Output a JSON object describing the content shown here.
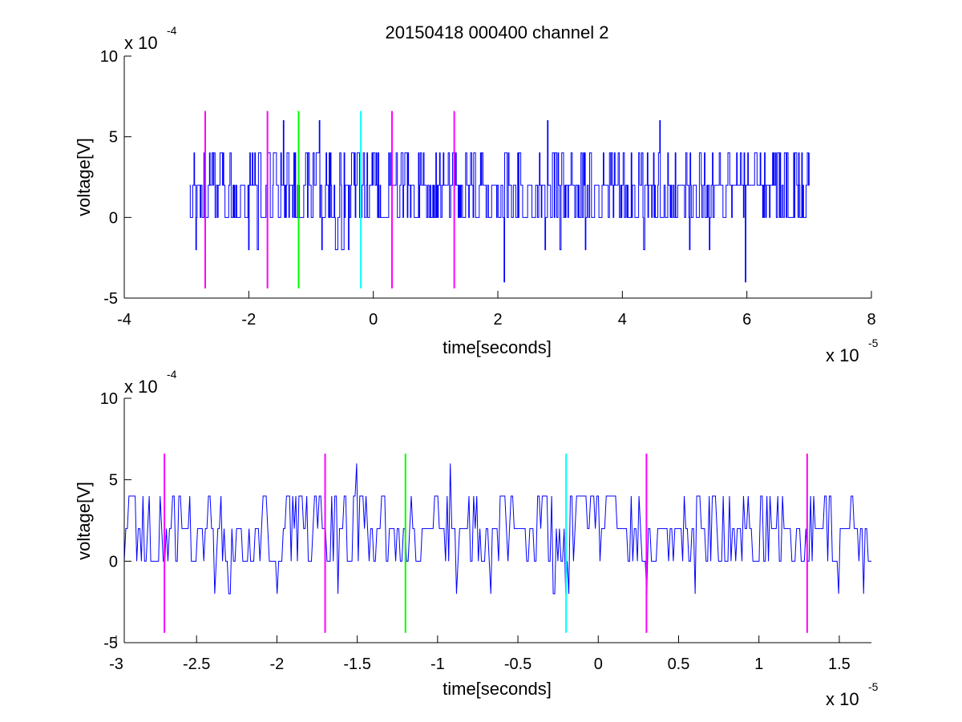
{
  "title": "20150418 000400 channel 2",
  "colors": {
    "signal": "#0000ff",
    "magenta": "#ff00ff",
    "green": "#00ff00",
    "cyan": "#00ffff",
    "axis": "#000000"
  },
  "chart_data": [
    {
      "type": "line",
      "title": "20150418 000400 channel 2",
      "xlabel": "time[seconds]",
      "ylabel": "voltage[V]",
      "x_multiplier": {
        "base": "x 10",
        "exp": "-5"
      },
      "y_multiplier": {
        "base": "x 10",
        "exp": "-4"
      },
      "xlim": [
        -4e-05,
        8e-05
      ],
      "ylim": [
        -0.0005,
        0.001
      ],
      "x_ticks": [
        -4e-05,
        -2e-05,
        0,
        2e-05,
        4e-05,
        6e-05,
        8e-05
      ],
      "x_tick_labels": [
        "-4",
        "-2",
        "0",
        "2",
        "4",
        "6",
        "8"
      ],
      "y_ticks": [
        -0.0005,
        0,
        0.0005,
        0.001
      ],
      "y_tick_labels": [
        "-5",
        "0",
        "5",
        "10"
      ],
      "series": [
        {
          "x_range": [
            -2.95e-05,
            7e-05
          ],
          "levels_volts": [
            -0.0004,
            -0.0002,
            0,
            0.0002,
            0.0004,
            0.0006
          ],
          "baseline": 0.0002
        }
      ],
      "markers": [
        {
          "x": -2.7e-05,
          "color": "magenta",
          "ymin": -0.00044,
          "ymax": 0.00066
        },
        {
          "x": -1.7e-05,
          "color": "magenta",
          "ymin": -0.00044,
          "ymax": 0.00066
        },
        {
          "x": -1.2e-05,
          "color": "green",
          "ymin": -0.00044,
          "ymax": 0.00066
        },
        {
          "x": -2e-06,
          "color": "cyan",
          "ymin": -0.00044,
          "ymax": 0.00066
        },
        {
          "x": 3e-06,
          "color": "magenta",
          "ymin": -0.00044,
          "ymax": 0.00066
        },
        {
          "x": 1.3e-05,
          "color": "magenta",
          "ymin": -0.00044,
          "ymax": 0.00066
        }
      ],
      "spikes": [
        {
          "x": -1.45e-05,
          "y": 0.0006
        },
        {
          "x": -8.7e-06,
          "y": 0.0006
        },
        {
          "x": 2.8e-05,
          "y": 0.0006
        },
        {
          "x": 4.6e-05,
          "y": 0.0006
        },
        {
          "x": 2.1e-05,
          "y": -0.0004
        },
        {
          "x": 5.97e-05,
          "y": -0.0004
        },
        {
          "x": -2e-05,
          "y": -0.0002
        },
        {
          "x": -4e-06,
          "y": -0.0002
        },
        {
          "x": 3.4e-05,
          "y": -0.0002
        },
        {
          "x": 5.4e-05,
          "y": -0.0002
        }
      ],
      "grid": false
    },
    {
      "type": "line",
      "title": "",
      "xlabel": "time[seconds]",
      "ylabel": "voltage[V]",
      "x_multiplier": {
        "base": "x 10",
        "exp": "-5"
      },
      "y_multiplier": {
        "base": "x 10",
        "exp": "-4"
      },
      "xlim": [
        -2.95e-05,
        1.7e-05
      ],
      "ylim": [
        -0.0005,
        0.001
      ],
      "x_ticks": [
        -3e-05,
        -2.5e-05,
        -2e-05,
        -1.5e-05,
        -1e-05,
        -5e-06,
        0,
        5e-06,
        1e-05,
        1.5e-05
      ],
      "x_tick_labels": [
        "-3",
        "-2.5",
        "-2",
        "-1.5",
        "-1",
        "-0.5",
        "0",
        "0.5",
        "1",
        "1.5"
      ],
      "y_ticks": [
        -0.0005,
        0,
        0.0005,
        0.001
      ],
      "y_tick_labels": [
        "-5",
        "0",
        "5",
        "10"
      ],
      "series": [
        {
          "x_range": [
            -2.95e-05,
            1.7e-05
          ],
          "levels_volts": [
            -0.0002,
            0,
            0.0002,
            0.0004,
            0.0006
          ],
          "baseline": 0.0002
        }
      ],
      "markers": [
        {
          "x": -2.7e-05,
          "color": "magenta",
          "ymin": -0.00044,
          "ymax": 0.00066
        },
        {
          "x": -1.7e-05,
          "color": "magenta",
          "ymin": -0.00044,
          "ymax": 0.00066
        },
        {
          "x": -1.2e-05,
          "color": "green",
          "ymin": -0.00044,
          "ymax": 0.00066
        },
        {
          "x": -2e-06,
          "color": "cyan",
          "ymin": -0.00044,
          "ymax": 0.00066
        },
        {
          "x": 3e-06,
          "color": "magenta",
          "ymin": -0.00044,
          "ymax": 0.00066
        },
        {
          "x": 1.3e-05,
          "color": "magenta",
          "ymin": -0.00044,
          "ymax": 0.00066
        }
      ],
      "spikes": [
        {
          "x": -1.5e-05,
          "y": 0.0006
        },
        {
          "x": -9.2e-06,
          "y": 0.0006
        },
        {
          "x": -2e-05,
          "y": -0.0002
        },
        {
          "x": -1.62e-05,
          "y": -0.0002
        },
        {
          "x": -6.7e-06,
          "y": -0.0002
        },
        {
          "x": -2e-06,
          "y": -0.0002
        },
        {
          "x": 3e-06,
          "y": -0.0002
        },
        {
          "x": 6e-06,
          "y": -0.0002
        },
        {
          "x": 1.5e-05,
          "y": -0.0002
        },
        {
          "x": 1.65e-05,
          "y": -0.0002
        }
      ],
      "grid": false
    }
  ]
}
